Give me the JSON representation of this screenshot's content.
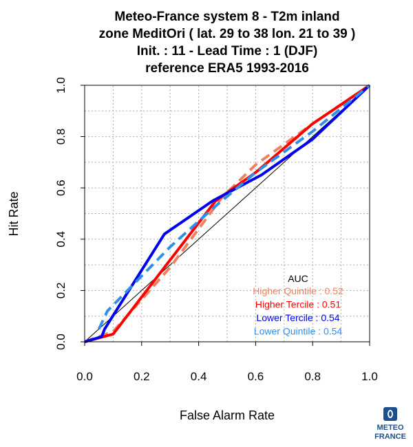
{
  "title_lines": [
    "Meteo-France system 8  -  T2m inland",
    "zone MeditOri ( lat. 29 to 38    lon. 21 to 39 )",
    "Init. : 11  - Lead Time : 1 (DJF)",
    "reference ERA5 1993-2016"
  ],
  "logo": {
    "line1": "METEO",
    "line2": "FRANCE"
  },
  "chart_data": {
    "type": "line",
    "xlabel": "False Alarm Rate",
    "ylabel": "Hit Rate",
    "xlim": [
      0,
      1
    ],
    "ylim": [
      0,
      1
    ],
    "grid": true,
    "xticks": [
      "0.0",
      "0.2",
      "0.4",
      "0.6",
      "0.8",
      "1.0"
    ],
    "yticks": [
      "0.0",
      "0.2",
      "0.4",
      "0.6",
      "0.8",
      "1.0"
    ],
    "diagonal": true,
    "legend_title": "AUC",
    "legend_position": "bottom-right",
    "series": [
      {
        "name": "Higher Quintile : 0.52",
        "color": "#f08060",
        "dashed": true,
        "x": [
          0,
          0.1,
          0.3,
          0.48,
          0.6,
          0.8,
          1
        ],
        "y": [
          0,
          0.04,
          0.29,
          0.56,
          0.69,
          0.85,
          1
        ]
      },
      {
        "name": "Higher Tercile : 0.51",
        "color": "#ff0000",
        "dashed": false,
        "x": [
          0,
          0.1,
          0.28,
          0.46,
          0.6,
          0.8,
          1
        ],
        "y": [
          0,
          0.03,
          0.29,
          0.55,
          0.66,
          0.85,
          1
        ]
      },
      {
        "name": "Lower Tercile : 0.54",
        "color": "#0000ee",
        "dashed": false,
        "x": [
          0,
          0.06,
          0.07,
          0.28,
          0.45,
          0.62,
          0.8,
          1
        ],
        "y": [
          0,
          0.02,
          0.05,
          0.42,
          0.55,
          0.65,
          0.79,
          1
        ]
      },
      {
        "name": "Lower Quintile : 0.54",
        "color": "#3090e8",
        "dashed": true,
        "x": [
          0.05,
          0.08,
          0.3,
          0.45,
          0.6,
          0.8,
          1
        ],
        "y": [
          0.05,
          0.12,
          0.37,
          0.52,
          0.66,
          0.82,
          1
        ]
      }
    ]
  }
}
